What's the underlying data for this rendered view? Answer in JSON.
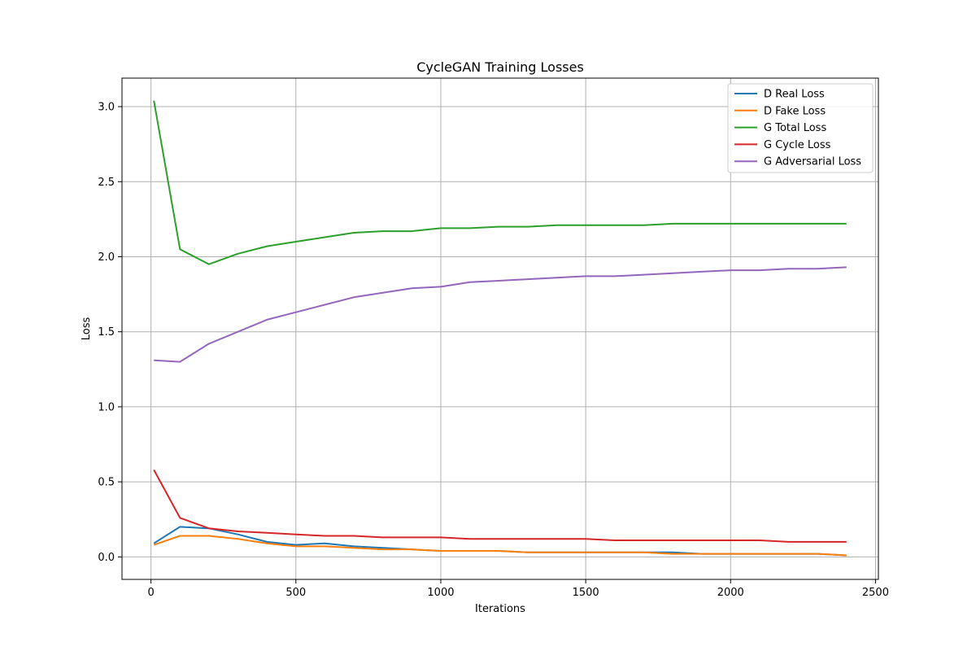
{
  "chart_data": {
    "type": "line",
    "title": "CycleGAN Training Losses",
    "xlabel": "Iterations",
    "ylabel": "Loss",
    "xlim": [
      -100,
      2510
    ],
    "ylim": [
      -0.15,
      3.19
    ],
    "xticks": [
      0,
      500,
      1000,
      1500,
      2000,
      2500
    ],
    "xtick_labels": [
      "0",
      "500",
      "1000",
      "1500",
      "2000",
      "2500"
    ],
    "yticks": [
      0.0,
      0.5,
      1.0,
      1.5,
      2.0,
      2.5,
      3.0
    ],
    "ytick_labels": [
      "0.0",
      "0.5",
      "1.0",
      "1.5",
      "2.0",
      "2.5",
      "3.0"
    ],
    "grid": true,
    "legend_position": "top-right",
    "x": [
      10,
      100,
      200,
      300,
      400,
      500,
      600,
      700,
      800,
      900,
      1000,
      1100,
      1200,
      1300,
      1400,
      1500,
      1600,
      1700,
      1800,
      1900,
      2000,
      2100,
      2200,
      2300,
      2400
    ],
    "series": [
      {
        "name": "D Real Loss",
        "color": "#1f77b4",
        "values": [
          0.09,
          0.2,
          0.19,
          0.15,
          0.1,
          0.08,
          0.09,
          0.07,
          0.06,
          0.05,
          0.04,
          0.04,
          0.04,
          0.03,
          0.03,
          0.03,
          0.03,
          0.03,
          0.03,
          0.02,
          0.02,
          0.02,
          0.02,
          0.02,
          0.01
        ]
      },
      {
        "name": "D Fake Loss",
        "color": "#ff7f0e",
        "values": [
          0.08,
          0.14,
          0.14,
          0.12,
          0.09,
          0.07,
          0.07,
          0.06,
          0.05,
          0.05,
          0.04,
          0.04,
          0.04,
          0.03,
          0.03,
          0.03,
          0.03,
          0.03,
          0.02,
          0.02,
          0.02,
          0.02,
          0.02,
          0.02,
          0.01
        ]
      },
      {
        "name": "G Total Loss",
        "color": "#2ca02c",
        "values": [
          3.04,
          2.05,
          1.95,
          2.02,
          2.07,
          2.1,
          2.13,
          2.16,
          2.17,
          2.17,
          2.19,
          2.19,
          2.2,
          2.2,
          2.21,
          2.21,
          2.21,
          2.21,
          2.22,
          2.22,
          2.22,
          2.22,
          2.22,
          2.22,
          2.22
        ]
      },
      {
        "name": "G Cycle Loss",
        "color": "#d62728",
        "values": [
          0.58,
          0.26,
          0.19,
          0.17,
          0.16,
          0.15,
          0.14,
          0.14,
          0.13,
          0.13,
          0.13,
          0.12,
          0.12,
          0.12,
          0.12,
          0.12,
          0.11,
          0.11,
          0.11,
          0.11,
          0.11,
          0.11,
          0.1,
          0.1,
          0.1
        ]
      },
      {
        "name": "G Adversarial Loss",
        "color": "#9467bd",
        "values": [
          1.31,
          1.3,
          1.42,
          1.5,
          1.58,
          1.63,
          1.68,
          1.73,
          1.76,
          1.79,
          1.8,
          1.83,
          1.84,
          1.85,
          1.86,
          1.87,
          1.87,
          1.88,
          1.89,
          1.9,
          1.91,
          1.91,
          1.92,
          1.92,
          1.93
        ]
      }
    ]
  }
}
